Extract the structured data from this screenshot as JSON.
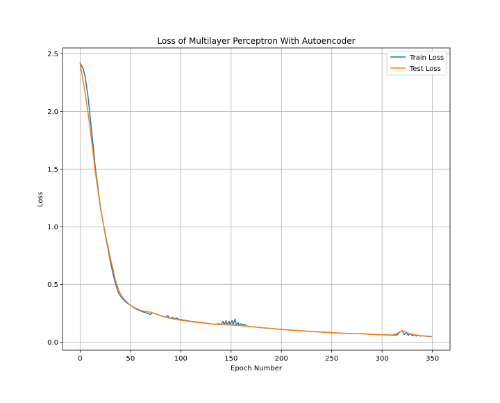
{
  "chart_data": {
    "type": "line",
    "title": "Loss of Multilayer Perceptron With Autoencoder",
    "xlabel": "Epoch Number",
    "ylabel": "Loss",
    "xlim": [
      -17.5,
      367.5
    ],
    "ylim": [
      -0.07,
      2.55
    ],
    "xticks": [
      0,
      50,
      100,
      150,
      200,
      250,
      300,
      350
    ],
    "yticks": [
      0.0,
      0.5,
      1.0,
      1.5,
      2.0,
      2.5
    ],
    "xtick_labels": [
      "0",
      "50",
      "100",
      "150",
      "200",
      "250",
      "300",
      "350"
    ],
    "ytick_labels": [
      "0.0",
      "0.5",
      "1.0",
      "1.5",
      "2.0",
      "2.5"
    ],
    "grid": true,
    "legend_position": "top-right",
    "series": [
      {
        "name": "Train Loss",
        "color": "#1f77b4",
        "points": [
          [
            0,
            2.42
          ],
          [
            3,
            2.37
          ],
          [
            5,
            2.3
          ],
          [
            8,
            2.12
          ],
          [
            10,
            1.95
          ],
          [
            13,
            1.7
          ],
          [
            15,
            1.52
          ],
          [
            18,
            1.32
          ],
          [
            20,
            1.18
          ],
          [
            23,
            1.03
          ],
          [
            25,
            0.93
          ],
          [
            28,
            0.8
          ],
          [
            30,
            0.7
          ],
          [
            33,
            0.58
          ],
          [
            35,
            0.51
          ],
          [
            38,
            0.43
          ],
          [
            40,
            0.4
          ],
          [
            43,
            0.37
          ],
          [
            45,
            0.35
          ],
          [
            48,
            0.33
          ],
          [
            50,
            0.32
          ],
          [
            55,
            0.29
          ],
          [
            60,
            0.27
          ],
          [
            65,
            0.255
          ],
          [
            70,
            0.24
          ],
          [
            72,
            0.255
          ],
          [
            75,
            0.245
          ],
          [
            80,
            0.23
          ],
          [
            85,
            0.215
          ],
          [
            87,
            0.23
          ],
          [
            89,
            0.205
          ],
          [
            92,
            0.215
          ],
          [
            94,
            0.2
          ],
          [
            96,
            0.21
          ],
          [
            98,
            0.195
          ],
          [
            100,
            0.195
          ],
          [
            110,
            0.18
          ],
          [
            120,
            0.17
          ],
          [
            130,
            0.158
          ],
          [
            135,
            0.155
          ],
          [
            138,
            0.16
          ],
          [
            140,
            0.15
          ],
          [
            142,
            0.18
          ],
          [
            143,
            0.15
          ],
          [
            145,
            0.185
          ],
          [
            146,
            0.15
          ],
          [
            148,
            0.18
          ],
          [
            149,
            0.15
          ],
          [
            151,
            0.185
          ],
          [
            152,
            0.15
          ],
          [
            154,
            0.2
          ],
          [
            155,
            0.15
          ],
          [
            157,
            0.17
          ],
          [
            158,
            0.145
          ],
          [
            160,
            0.16
          ],
          [
            162,
            0.145
          ],
          [
            163,
            0.155
          ],
          [
            165,
            0.14
          ],
          [
            170,
            0.135
          ],
          [
            180,
            0.125
          ],
          [
            190,
            0.118
          ],
          [
            200,
            0.11
          ],
          [
            210,
            0.104
          ],
          [
            220,
            0.098
          ],
          [
            230,
            0.092
          ],
          [
            240,
            0.087
          ],
          [
            250,
            0.082
          ],
          [
            260,
            0.077
          ],
          [
            270,
            0.073
          ],
          [
            280,
            0.072
          ],
          [
            290,
            0.068
          ],
          [
            300,
            0.064
          ],
          [
            310,
            0.06
          ],
          [
            315,
            0.062
          ],
          [
            318,
            0.09
          ],
          [
            320,
            0.1
          ],
          [
            322,
            0.065
          ],
          [
            324,
            0.085
          ],
          [
            326,
            0.058
          ],
          [
            328,
            0.075
          ],
          [
            330,
            0.055
          ],
          [
            332,
            0.065
          ],
          [
            334,
            0.053
          ],
          [
            336,
            0.06
          ],
          [
            338,
            0.052
          ],
          [
            340,
            0.055
          ],
          [
            345,
            0.05
          ],
          [
            349,
            0.048
          ]
        ]
      },
      {
        "name": "Test Loss",
        "color": "#ff7f0e",
        "points": [
          [
            0,
            2.42
          ],
          [
            3,
            2.26
          ],
          [
            5,
            2.16
          ],
          [
            8,
            1.98
          ],
          [
            10,
            1.85
          ],
          [
            13,
            1.63
          ],
          [
            15,
            1.48
          ],
          [
            18,
            1.3
          ],
          [
            20,
            1.17
          ],
          [
            23,
            1.03
          ],
          [
            25,
            0.94
          ],
          [
            28,
            0.82
          ],
          [
            30,
            0.73
          ],
          [
            33,
            0.62
          ],
          [
            35,
            0.54
          ],
          [
            38,
            0.46
          ],
          [
            40,
            0.42
          ],
          [
            43,
            0.38
          ],
          [
            45,
            0.36
          ],
          [
            48,
            0.335
          ],
          [
            50,
            0.32
          ],
          [
            55,
            0.295
          ],
          [
            60,
            0.275
          ],
          [
            65,
            0.265
          ],
          [
            70,
            0.26
          ],
          [
            75,
            0.245
          ],
          [
            80,
            0.228
          ],
          [
            85,
            0.215
          ],
          [
            90,
            0.205
          ],
          [
            95,
            0.197
          ],
          [
            100,
            0.19
          ],
          [
            110,
            0.178
          ],
          [
            120,
            0.168
          ],
          [
            130,
            0.158
          ],
          [
            140,
            0.152
          ],
          [
            150,
            0.148
          ],
          [
            160,
            0.142
          ],
          [
            170,
            0.135
          ],
          [
            180,
            0.126
          ],
          [
            190,
            0.118
          ],
          [
            200,
            0.111
          ],
          [
            210,
            0.105
          ],
          [
            220,
            0.099
          ],
          [
            230,
            0.093
          ],
          [
            240,
            0.088
          ],
          [
            250,
            0.083
          ],
          [
            260,
            0.078
          ],
          [
            270,
            0.074
          ],
          [
            280,
            0.072
          ],
          [
            290,
            0.068
          ],
          [
            300,
            0.064
          ],
          [
            310,
            0.062
          ],
          [
            315,
            0.075
          ],
          [
            318,
            0.09
          ],
          [
            320,
            0.1
          ],
          [
            323,
            0.09
          ],
          [
            326,
            0.078
          ],
          [
            330,
            0.068
          ],
          [
            335,
            0.06
          ],
          [
            340,
            0.055
          ],
          [
            345,
            0.052
          ],
          [
            349,
            0.05
          ]
        ]
      }
    ]
  }
}
